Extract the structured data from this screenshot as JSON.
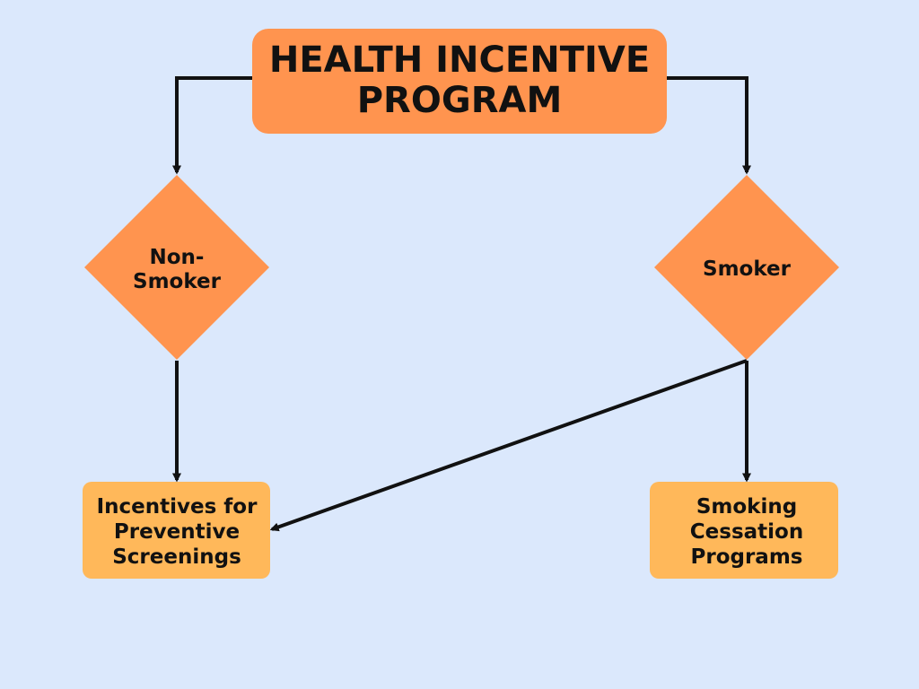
{
  "title": {
    "line1": "HEALTH INCENTIVE",
    "line2": "PROGRAM"
  },
  "decisions": {
    "non_smoker": {
      "line1": "Non-",
      "line2": "Smoker"
    },
    "smoker": {
      "line1": "Smoker"
    }
  },
  "outcomes": {
    "preventive": {
      "line1": "Incentives for",
      "line2": "Preventive",
      "line3": "Screenings"
    },
    "cessation": {
      "line1": "Smoking",
      "line2": "Cessation",
      "line3": "Programs"
    }
  },
  "colors": {
    "background": "#dbe8fc",
    "primary_node": "#ff944f",
    "secondary_node": "#ffb85a",
    "edge": "#111111"
  }
}
